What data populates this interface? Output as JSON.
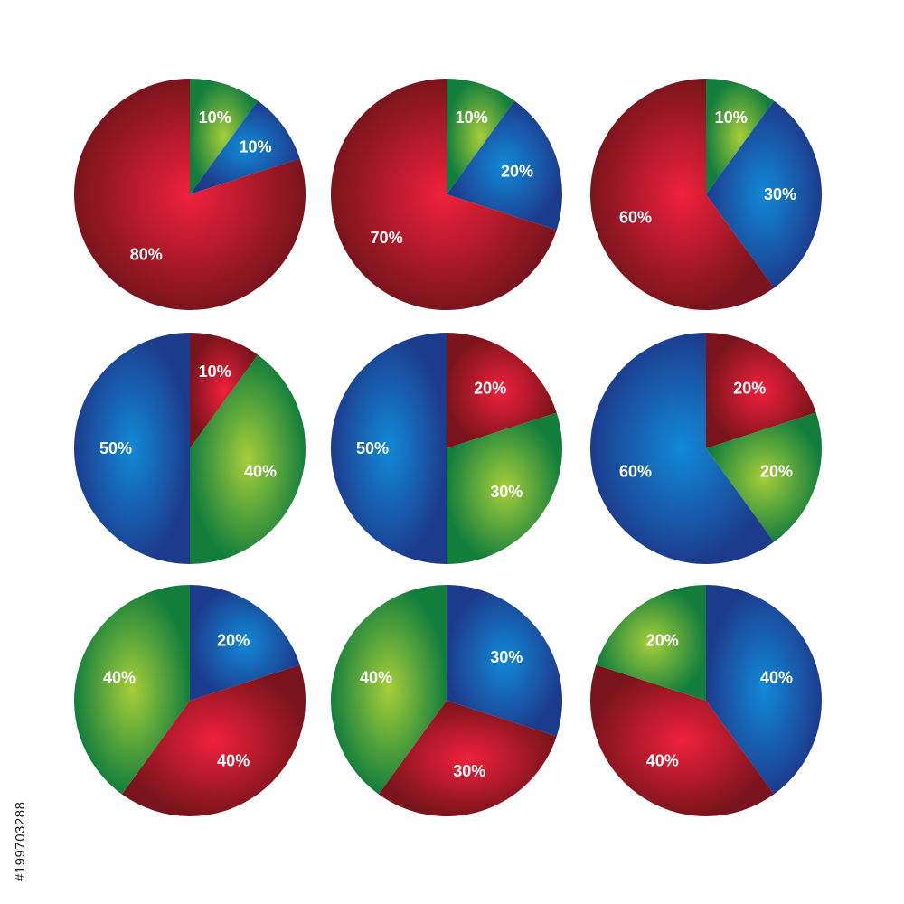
{
  "colors": {
    "red": {
      "light": "#f0203c",
      "dark": "#7a141c"
    },
    "green": {
      "light": "#a6cf3a",
      "dark": "#137e3c"
    },
    "blue": {
      "light": "#1189d6",
      "dark": "#1d3b8d"
    }
  },
  "chart_data": [
    {
      "type": "pie",
      "slices": [
        {
          "value": 10,
          "label": "10%",
          "color": "green"
        },
        {
          "value": 10,
          "label": "10%",
          "color": "blue"
        },
        {
          "value": 80,
          "label": "80%",
          "color": "red"
        }
      ]
    },
    {
      "type": "pie",
      "slices": [
        {
          "value": 10,
          "label": "10%",
          "color": "green"
        },
        {
          "value": 20,
          "label": "20%",
          "color": "blue"
        },
        {
          "value": 70,
          "label": "70%",
          "color": "red"
        }
      ]
    },
    {
      "type": "pie",
      "slices": [
        {
          "value": 10,
          "label": "10%",
          "color": "green"
        },
        {
          "value": 30,
          "label": "30%",
          "color": "blue"
        },
        {
          "value": 60,
          "label": "60%",
          "color": "red"
        }
      ]
    },
    {
      "type": "pie",
      "slices": [
        {
          "value": 10,
          "label": "10%",
          "color": "red"
        },
        {
          "value": 40,
          "label": "40%",
          "color": "green"
        },
        {
          "value": 50,
          "label": "50%",
          "color": "blue"
        }
      ]
    },
    {
      "type": "pie",
      "slices": [
        {
          "value": 20,
          "label": "20%",
          "color": "red"
        },
        {
          "value": 30,
          "label": "30%",
          "color": "green"
        },
        {
          "value": 50,
          "label": "50%",
          "color": "blue"
        }
      ]
    },
    {
      "type": "pie",
      "slices": [
        {
          "value": 20,
          "label": "20%",
          "color": "red"
        },
        {
          "value": 20,
          "label": "20%",
          "color": "green"
        },
        {
          "value": 60,
          "label": "60%",
          "color": "blue"
        }
      ]
    },
    {
      "type": "pie",
      "slices": [
        {
          "value": 20,
          "label": "20%",
          "color": "blue"
        },
        {
          "value": 40,
          "label": "40%",
          "color": "red"
        },
        {
          "value": 40,
          "label": "40%",
          "color": "green"
        }
      ]
    },
    {
      "type": "pie",
      "slices": [
        {
          "value": 30,
          "label": "30%",
          "color": "blue"
        },
        {
          "value": 30,
          "label": "30%",
          "color": "red"
        },
        {
          "value": 40,
          "label": "40%",
          "color": "green"
        }
      ]
    },
    {
      "type": "pie",
      "slices": [
        {
          "value": 40,
          "label": "40%",
          "color": "blue"
        },
        {
          "value": 40,
          "label": "40%",
          "color": "red"
        },
        {
          "value": 20,
          "label": "20%",
          "color": "green"
        }
      ]
    }
  ],
  "watermark": "#199703288"
}
